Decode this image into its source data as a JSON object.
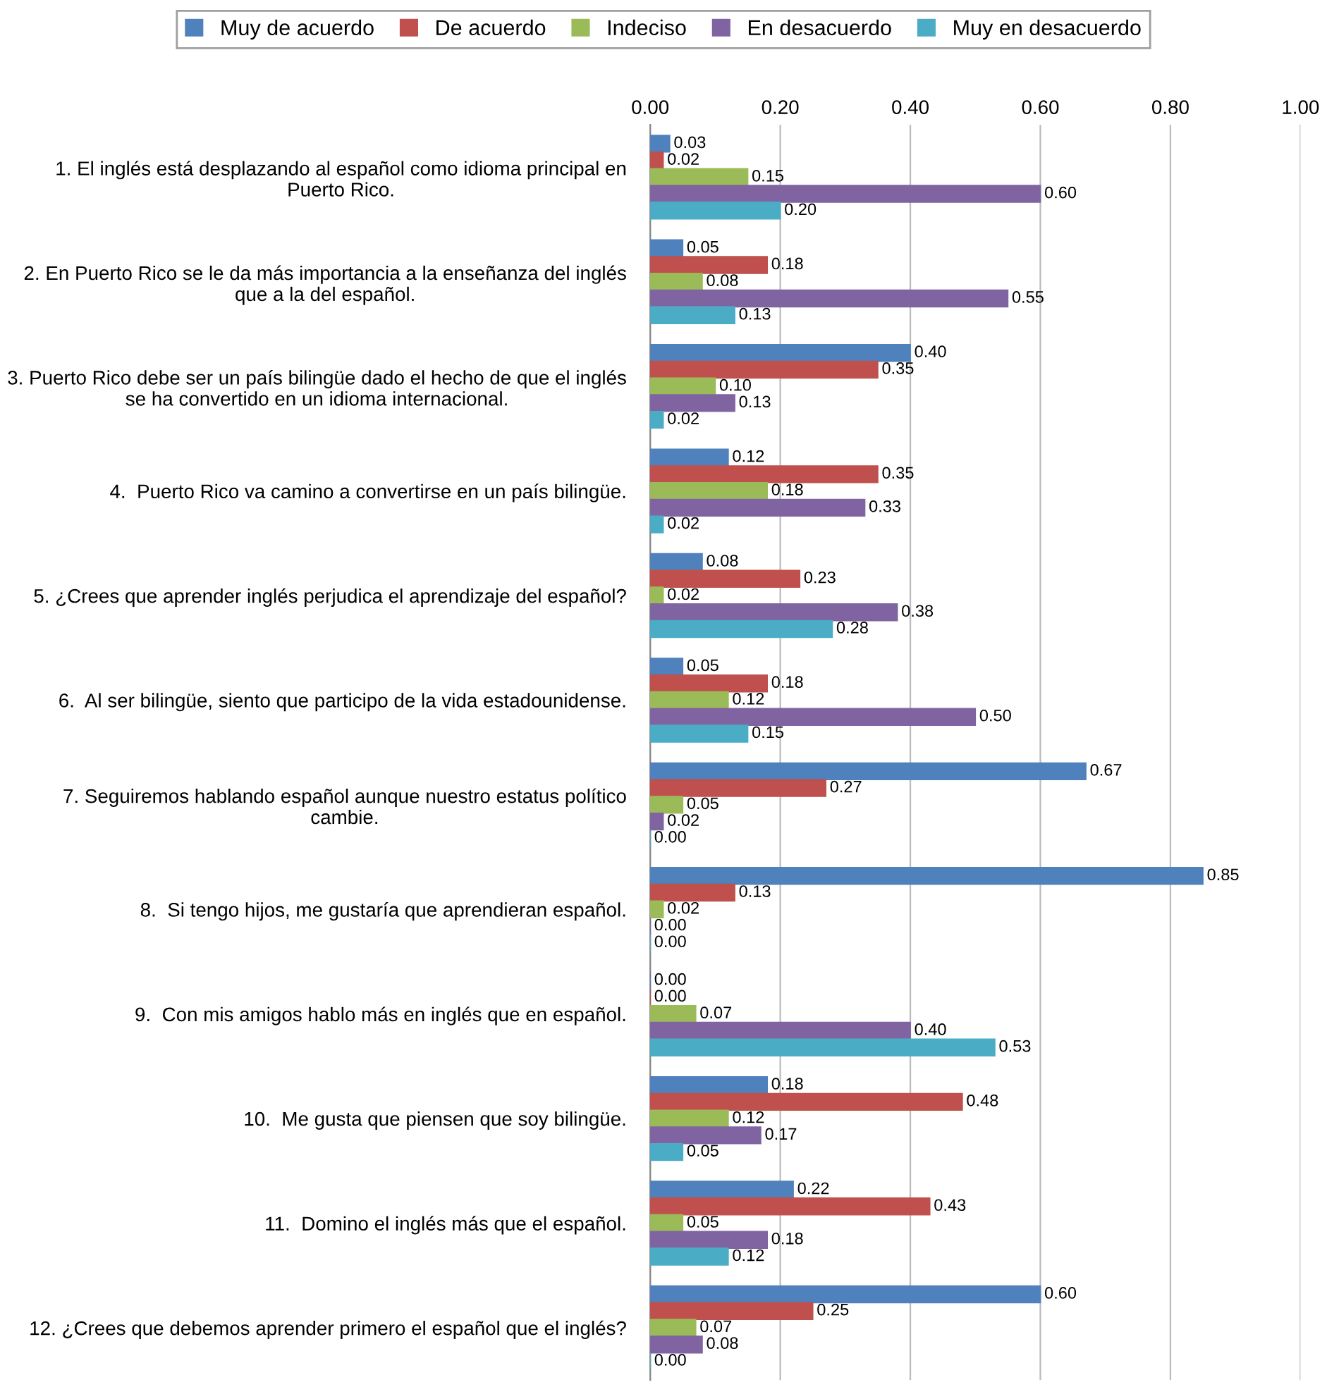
{
  "chart_data": {
    "type": "bar",
    "orientation": "horizontal",
    "categories": [
      "1. El inglés está desplazando al español como idioma principal en Puerto Rico.",
      "2. En Puerto Rico se le da más importancia a la enseñanza del inglés que a la del español.",
      "3. Puerto Rico debe ser un país bilingüe dado el hecho de que el inglés se ha convertido en un idioma internacional.",
      "4.  Puerto Rico va camino a convertirse en un país bilingüe.",
      "5. ¿Crees que aprender inglés perjudica el aprendizaje del español?",
      "6.  Al ser bilingüe, siento que participo de la vida estadounidense.",
      "7. Seguiremos hablando español aunque nuestro estatus político cambie.",
      "8.  Si tengo hijos, me gustaría que aprendieran español.",
      "9.  Con mis amigos hablo más en inglés que en español.",
      "10.  Me gusta que piensen que soy bilingüe.",
      "11.  Domino el inglés más que el español.",
      "12. ¿Crees que debemos aprender primero el español que el inglés?"
    ],
    "series": [
      {
        "name": "Muy de acuerdo",
        "color": "#4f81bd",
        "values": [
          0.03,
          0.05,
          0.4,
          0.12,
          0.08,
          0.05,
          0.67,
          0.85,
          0.0,
          0.18,
          0.22,
          0.6
        ],
        "value_labels": [
          "0.03",
          "0.05",
          "0.40",
          "0.12",
          "0.08",
          "0.05",
          "0.67",
          "0.85",
          "0.00",
          "0.18",
          "0.22",
          "0.60"
        ]
      },
      {
        "name": "De acuerdo",
        "color": "#c0504d",
        "values": [
          0.02,
          0.18,
          0.35,
          0.35,
          0.23,
          0.18,
          0.27,
          0.13,
          0.0,
          0.48,
          0.43,
          0.25
        ],
        "value_labels": [
          "0.02",
          "0.18",
          "0.35",
          "0.35",
          "0.23",
          "0.18",
          "0.27",
          "0.13",
          "0.00",
          "0.48",
          "0.43",
          "0.25"
        ]
      },
      {
        "name": "Indeciso",
        "color": "#9bbb59",
        "values": [
          0.15,
          0.08,
          0.1,
          0.18,
          0.02,
          0.12,
          0.05,
          0.02,
          0.07,
          0.12,
          0.05,
          0.07
        ],
        "value_labels": [
          "0.15",
          "0.08",
          "0.10",
          "0.18",
          "0.02",
          "0.12",
          "0.05",
          "0.02",
          "0.07",
          "0.12",
          "0.05",
          "0.07"
        ]
      },
      {
        "name": "En desacuerdo",
        "color": "#8064a2",
        "values": [
          0.6,
          0.55,
          0.13,
          0.33,
          0.38,
          0.5,
          0.02,
          0.0,
          0.4,
          0.17,
          0.18,
          0.08
        ],
        "value_labels": [
          "0.60",
          "0.55",
          "0.13",
          "0.33",
          "0.38",
          "0.50",
          "0.02",
          "0.00",
          "0.40",
          "0.17",
          "0.18",
          "0.08"
        ]
      },
      {
        "name": "Muy en desacuerdo",
        "color": "#4bacc6",
        "values": [
          0.2,
          0.13,
          0.02,
          0.02,
          0.28,
          0.15,
          0.0,
          0.0,
          0.53,
          0.05,
          0.12,
          0.0
        ],
        "value_labels": [
          "0.20",
          "0.13",
          "0.02",
          "0.02",
          "0.28",
          "0.15",
          "0.00",
          "0.00",
          "0.53",
          "0.05",
          "0.12",
          "0.00"
        ]
      }
    ],
    "xlim": [
      0,
      1
    ],
    "xticks": [
      {
        "value": 0,
        "label": "0.00"
      },
      {
        "value": 0.2,
        "label": "0.20"
      },
      {
        "value": 0.4,
        "label": "0.40"
      },
      {
        "value": 0.6,
        "label": "0.60"
      },
      {
        "value": 0.8,
        "label": "0.80"
      },
      {
        "value": 1,
        "label": "1.00"
      }
    ],
    "grid": "x",
    "legend": "top"
  }
}
